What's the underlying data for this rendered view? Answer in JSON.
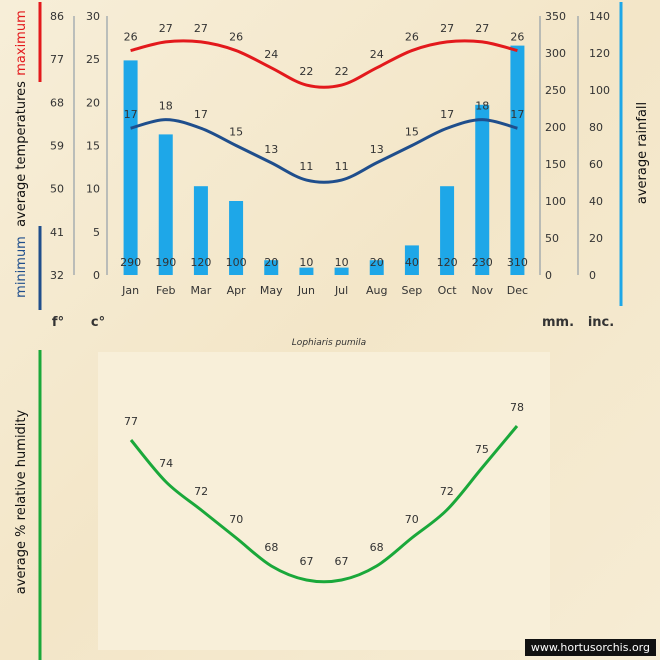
{
  "caption": "Lophiaris pumila",
  "watermark": "www.hortusorchis.org",
  "colors": {
    "maximum": "#e3191c",
    "minimum": "#1f4e8c",
    "rainfall": "#1ea7e8",
    "humidity": "#1aa83a"
  },
  "labels": {
    "temp_axis_max": "maximum",
    "temp_axis_mid": "average  temperatures",
    "temp_axis_min": "minimum",
    "rain_axis": "average rainfall",
    "humidity_axis": "average %  relative humidity",
    "unit_f": "f°",
    "unit_c": "c°",
    "unit_mm": "mm.",
    "unit_inc": "inc."
  },
  "chart_data": [
    {
      "type": "line",
      "categories": [
        "Jan",
        "Feb",
        "Mar",
        "Apr",
        "May",
        "Jun",
        "Jul",
        "Aug",
        "Sep",
        "Oct",
        "Nov",
        "Dec"
      ],
      "series": [
        {
          "name": "maximum",
          "values": [
            26,
            27,
            27,
            26,
            24,
            22,
            22,
            24,
            26,
            27,
            27,
            26
          ]
        },
        {
          "name": "minimum",
          "values": [
            17,
            18,
            17,
            15,
            13,
            11,
            11,
            13,
            15,
            17,
            18,
            17
          ]
        }
      ],
      "rainfall": {
        "type": "bar",
        "values": [
          290,
          190,
          120,
          100,
          20,
          10,
          10,
          20,
          40,
          120,
          230,
          310
        ]
      },
      "yaxis_c": {
        "ylim": [
          0,
          30
        ],
        "ticks": [
          0,
          5,
          10,
          15,
          20,
          25,
          30
        ]
      },
      "yaxis_f": {
        "ticks": [
          32,
          41,
          50,
          59,
          68,
          77,
          86
        ]
      },
      "yaxis_mm": {
        "ylim": [
          0,
          350
        ],
        "ticks": [
          0,
          50,
          100,
          150,
          200,
          250,
          300,
          350
        ]
      },
      "yaxis_inc": {
        "ticks": [
          0,
          20,
          40,
          60,
          80,
          100,
          120,
          140
        ]
      },
      "grid": false
    },
    {
      "type": "line",
      "categories": [
        "Jan",
        "Feb",
        "Mar",
        "Apr",
        "May",
        "Jun",
        "Jul",
        "Aug",
        "Sep",
        "Oct",
        "Nov",
        "Dec"
      ],
      "series": [
        {
          "name": "humidity",
          "values": [
            77,
            74,
            72,
            70,
            68,
            67,
            67,
            68,
            70,
            72,
            75,
            78
          ]
        }
      ],
      "grid": false
    }
  ]
}
